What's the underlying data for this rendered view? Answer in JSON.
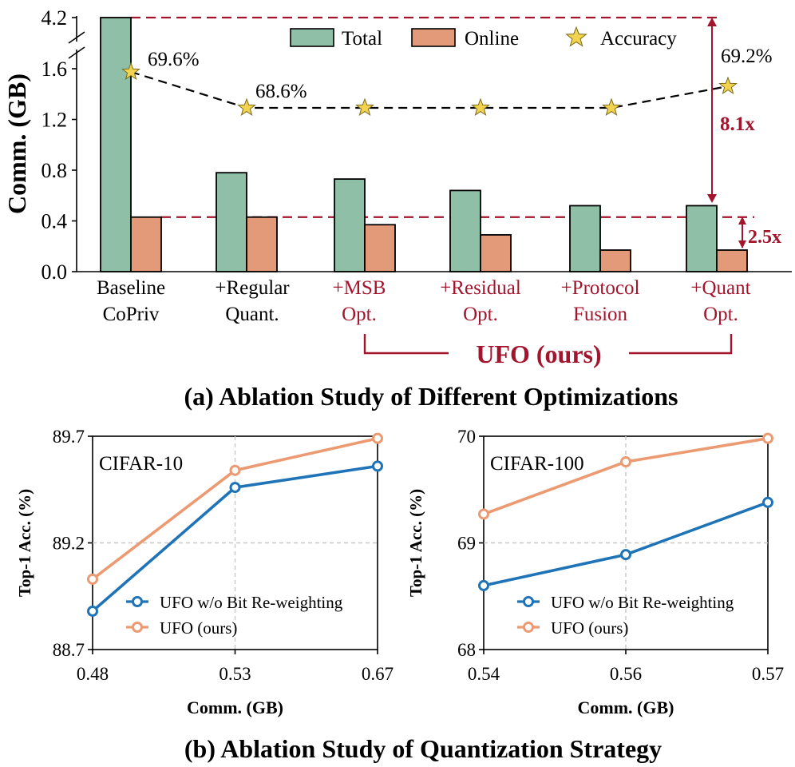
{
  "colors": {
    "total": "#8fbfa7",
    "online": "#e39a78",
    "star": "#f2d34f",
    "accent": "#a3152d",
    "blue": "#1f73b7",
    "orange": "#ec9a72"
  },
  "chart_data": [
    {
      "type": "bar",
      "title": "(a) Ablation Study of Different Optimizations",
      "ylabel": "Comm. (GB)",
      "y_ticks": [
        "0.0",
        "0.4",
        "0.8",
        "1.2",
        "1.6",
        "4.2"
      ],
      "ylim": [
        0,
        1.8
      ],
      "axis_break": "1.6 to 4.2",
      "categories": [
        {
          "line1": "Baseline",
          "line2": "CoPriv",
          "highlight": false
        },
        {
          "line1": "+Regular",
          "line2": "Quant.",
          "highlight": false
        },
        {
          "line1": "+MSB",
          "line2": "Opt.",
          "highlight": true
        },
        {
          "line1": "+Residual",
          "line2": "Opt.",
          "highlight": true
        },
        {
          "line1": "+Protocol",
          "line2": "Fusion",
          "highlight": true
        },
        {
          "line1": "+Quant",
          "line2": "Opt.",
          "highlight": true
        }
      ],
      "series": [
        {
          "name": "Total",
          "values": [
            4.2,
            0.78,
            0.73,
            0.64,
            0.52,
            0.52
          ]
        },
        {
          "name": "Online",
          "values": [
            0.43,
            0.43,
            0.37,
            0.29,
            0.17,
            0.17
          ]
        }
      ],
      "accuracy_series": {
        "name": "Accuracy",
        "values": [
          69.6,
          68.6,
          68.6,
          68.6,
          68.6,
          69.2
        ],
        "labels": [
          "69.6%",
          "68.6%",
          "",
          "",
          "",
          "69.2%"
        ]
      },
      "annotations": {
        "total_reduction": "8.1x",
        "online_reduction": "2.5x",
        "group_label": "UFO (ours)"
      },
      "legend": {
        "items": [
          "Total",
          "Online",
          "Accuracy"
        ],
        "position": "top"
      }
    },
    {
      "type": "line",
      "title": "CIFAR-10",
      "xlabel": "Comm. (GB)",
      "ylabel": "Top-1 Acc. (%)",
      "x": [
        "0.48",
        "0.53",
        "0.67"
      ],
      "y_ticks": [
        "88.7",
        "89.2",
        "89.7"
      ],
      "ylim": [
        88.7,
        89.7
      ],
      "series": [
        {
          "name": "UFO w/o Bit Re-weighting",
          "values": [
            88.88,
            89.46,
            89.56
          ]
        },
        {
          "name": "UFO (ours)",
          "values": [
            89.03,
            89.54,
            89.69
          ]
        }
      ],
      "legend": {
        "position": "bottom-right"
      }
    },
    {
      "type": "line",
      "title": "CIFAR-100",
      "xlabel": "Comm. (GB)",
      "ylabel": "Top-1 Acc. (%)",
      "x": [
        "0.54",
        "0.56",
        "0.57"
      ],
      "y_ticks": [
        "68",
        "69",
        "70"
      ],
      "ylim": [
        68,
        70
      ],
      "series": [
        {
          "name": "UFO w/o Bit Re-weighting",
          "values": [
            68.6,
            68.89,
            69.38
          ]
        },
        {
          "name": "UFO (ours)",
          "values": [
            69.27,
            69.76,
            69.98
          ]
        }
      ],
      "legend": {
        "position": "bottom-right"
      }
    }
  ],
  "caption_b": "(b) Ablation Study of Quantization Strategy"
}
